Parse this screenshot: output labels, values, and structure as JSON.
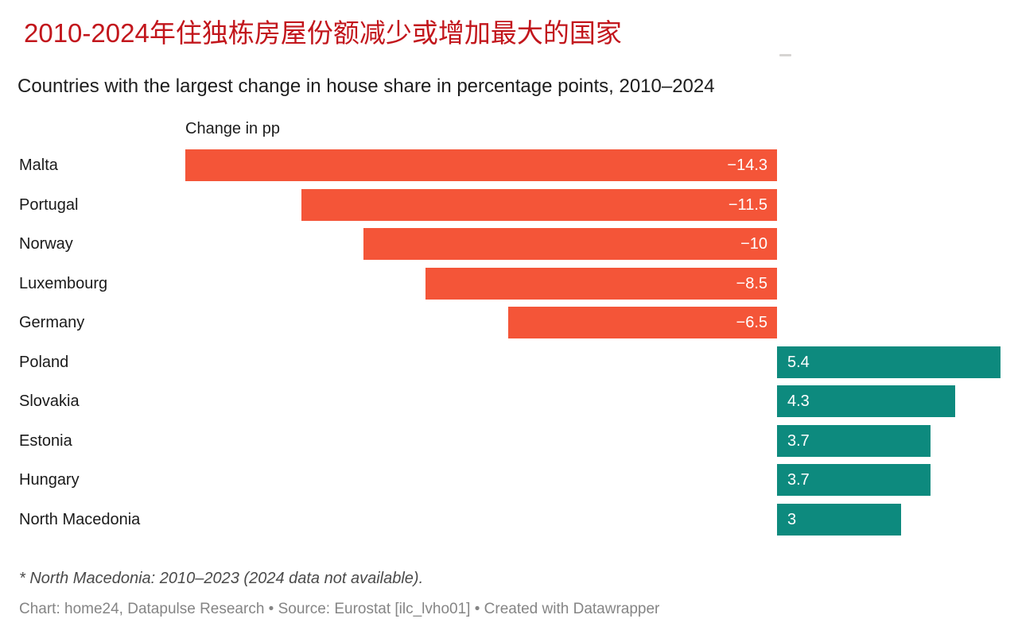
{
  "header": {
    "title_zh": "2010-2024年住独栋房屋份额减少或增加最大的国家",
    "subtitle": "Countries with the largest change in house share in percentage points, 2010–2024"
  },
  "colors": {
    "negative_bar": "#f45538",
    "positive_bar": "#0d8a7e",
    "title_red": "#c2161c",
    "text_dark": "#1d1d1d",
    "value_text": "#ffffff",
    "footnote_gray": "#4a4a4a",
    "credit_gray": "#858585"
  },
  "chart_data": {
    "type": "bar",
    "orientation": "horizontal",
    "axis_label": "Change in pp",
    "categories": [
      "Malta",
      "Portugal",
      "Norway",
      "Luxembourg",
      "Germany",
      "Poland",
      "Slovakia",
      "Estonia",
      "Hungary",
      "North Macedonia"
    ],
    "values": [
      -14.3,
      -11.5,
      -10,
      -8.5,
      -6.5,
      5.4,
      4.3,
      3.7,
      3.7,
      3
    ],
    "value_labels": [
      "−14.3",
      "−11.5",
      "−10",
      "−8.5",
      "−6.5",
      "5.4",
      "4.3",
      "3.7",
      "3.7",
      "3"
    ],
    "xlim": [
      -14.3,
      5.8
    ],
    "grid": false,
    "legend": false,
    "title": "Countries with the largest change in house share in percentage points, 2010–2024",
    "xlabel": "Change in pp",
    "ylabel": ""
  },
  "footer": {
    "footnote": "* North Macedonia: 2010–2023 (2024 data not available).",
    "credit": "Chart: home24, Datapulse Research • Source: Eurostat [ilc_lvho01] • Created with Datawrapper"
  }
}
